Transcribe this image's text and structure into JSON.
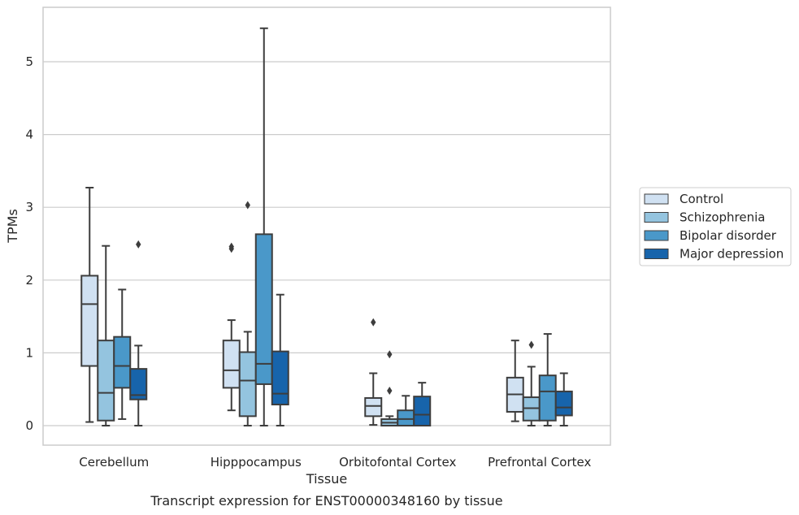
{
  "colors": {
    "Control": "#d0e1f2",
    "Schizophrenia": "#94c4df",
    "Bipolar disorder": "#4a98c9",
    "Major depression": "#1764ab",
    "box_edge": "#3d3d3d",
    "grid": "#cccccc"
  },
  "caption": "Transcript expression for ENST00000348160 by tissue",
  "chart_data": {
    "type": "box",
    "xlabel": "Tissue",
    "ylabel": "TPMs",
    "ylim": [
      -0.27,
      5.75
    ],
    "yticks": [
      "0",
      "1",
      "2",
      "3",
      "4",
      "5"
    ],
    "categories": [
      "Cerebellum",
      "Hipppocampus",
      "Orbitofontal Cortex",
      "Prefrontal Cortex"
    ],
    "grid": "horizontal",
    "legend_placement": "right-center",
    "series": [
      {
        "name": "Control",
        "boxes": [
          {
            "whislo": 0.05,
            "q1": 0.82,
            "med": 1.67,
            "q3": 2.06,
            "whishi": 3.27,
            "fliers": []
          },
          {
            "whislo": 0.21,
            "q1": 0.52,
            "med": 0.76,
            "q3": 1.17,
            "whishi": 1.45,
            "fliers": [
              2.43,
              2.46
            ]
          },
          {
            "whislo": 0.01,
            "q1": 0.13,
            "med": 0.27,
            "q3": 0.38,
            "whishi": 0.72,
            "fliers": [
              1.42
            ]
          },
          {
            "whislo": 0.06,
            "q1": 0.19,
            "med": 0.43,
            "q3": 0.66,
            "whishi": 1.17,
            "fliers": []
          }
        ]
      },
      {
        "name": "Schizophrenia",
        "boxes": [
          {
            "whislo": 0.0,
            "q1": 0.07,
            "med": 0.45,
            "q3": 1.17,
            "whishi": 2.47,
            "fliers": []
          },
          {
            "whislo": 0.0,
            "q1": 0.13,
            "med": 0.62,
            "q3": 1.01,
            "whishi": 1.29,
            "fliers": [
              3.03
            ]
          },
          {
            "whislo": 0.0,
            "q1": 0.0,
            "med": 0.04,
            "q3": 0.09,
            "whishi": 0.13,
            "fliers": [
              0.98,
              0.48
            ]
          },
          {
            "whislo": 0.0,
            "q1": 0.07,
            "med": 0.24,
            "q3": 0.39,
            "whishi": 0.81,
            "fliers": [
              1.11
            ]
          }
        ]
      },
      {
        "name": "Bipolar disorder",
        "boxes": [
          {
            "whislo": 0.09,
            "q1": 0.52,
            "med": 0.82,
            "q3": 1.22,
            "whishi": 1.87,
            "fliers": []
          },
          {
            "whislo": 0.0,
            "q1": 0.57,
            "med": 0.85,
            "q3": 2.63,
            "whishi": 5.46,
            "fliers": []
          },
          {
            "whislo": 0.0,
            "q1": 0.0,
            "med": 0.09,
            "q3": 0.21,
            "whishi": 0.41,
            "fliers": []
          },
          {
            "whislo": 0.0,
            "q1": 0.07,
            "med": 0.47,
            "q3": 0.69,
            "whishi": 1.26,
            "fliers": []
          }
        ]
      },
      {
        "name": "Major depression",
        "boxes": [
          {
            "whislo": 0.0,
            "q1": 0.36,
            "med": 0.42,
            "q3": 0.78,
            "whishi": 1.1,
            "fliers": [
              2.49
            ]
          },
          {
            "whislo": 0.0,
            "q1": 0.29,
            "med": 0.44,
            "q3": 1.02,
            "whishi": 1.8,
            "fliers": []
          },
          {
            "whislo": 0.0,
            "q1": 0.0,
            "med": 0.15,
            "q3": 0.4,
            "whishi": 0.59,
            "fliers": []
          },
          {
            "whislo": 0.0,
            "q1": 0.14,
            "med": 0.25,
            "q3": 0.47,
            "whishi": 0.72,
            "fliers": []
          }
        ]
      }
    ]
  }
}
